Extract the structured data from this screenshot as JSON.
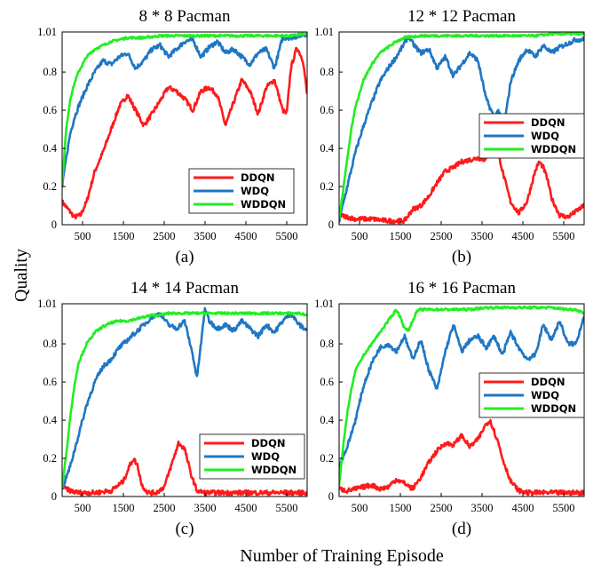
{
  "figure": {
    "ylabel": "Quality",
    "xlabel": "Number of Training Episode"
  },
  "chart_data": [
    {
      "type": "line",
      "title": "8 * 8 Pacman",
      "caption": "(a)",
      "xlim": [
        0,
        6000
      ],
      "ylim": [
        0,
        1.01
      ],
      "xticks": [
        500,
        1500,
        2500,
        3500,
        4500,
        5500
      ],
      "yticks": [
        0,
        0.2,
        0.4,
        0.6,
        0.8,
        1.01
      ],
      "ytick_labels": [
        "0",
        "0.2",
        "0.4",
        "0.6",
        "0.8",
        "1.01"
      ],
      "legend_position": "bottom-right",
      "series": [
        {
          "name": "DDQN",
          "color": "#ff1a1a",
          "x": [
            0,
            150,
            300,
            450,
            600,
            800,
            1000,
            1200,
            1400,
            1600,
            1800,
            2000,
            2200,
            2400,
            2600,
            2800,
            3000,
            3200,
            3400,
            3600,
            3800,
            4000,
            4200,
            4400,
            4600,
            4800,
            5000,
            5200,
            5400,
            5500,
            5600,
            5750,
            5900,
            6000
          ],
          "y": [
            0.12,
            0.08,
            0.04,
            0.05,
            0.12,
            0.28,
            0.38,
            0.5,
            0.62,
            0.68,
            0.6,
            0.52,
            0.58,
            0.65,
            0.72,
            0.7,
            0.66,
            0.6,
            0.7,
            0.72,
            0.68,
            0.52,
            0.64,
            0.76,
            0.7,
            0.58,
            0.72,
            0.76,
            0.6,
            0.58,
            0.82,
            0.93,
            0.86,
            0.68
          ]
        },
        {
          "name": "WDQ",
          "color": "#1f77c4",
          "x": [
            0,
            100,
            200,
            300,
            400,
            600,
            800,
            1000,
            1200,
            1400,
            1600,
            1800,
            2000,
            2200,
            2400,
            2600,
            2800,
            3000,
            3200,
            3400,
            3600,
            3800,
            4000,
            4200,
            4400,
            4600,
            4800,
            5000,
            5200,
            5400,
            5600,
            5800,
            6000
          ],
          "y": [
            0.2,
            0.35,
            0.48,
            0.56,
            0.62,
            0.72,
            0.8,
            0.86,
            0.84,
            0.88,
            0.9,
            0.82,
            0.86,
            0.92,
            0.94,
            0.88,
            0.92,
            0.96,
            0.97,
            0.88,
            0.93,
            0.96,
            0.9,
            0.92,
            0.88,
            0.84,
            0.9,
            0.92,
            0.82,
            0.98,
            0.98,
            0.99,
            1.0
          ]
        },
        {
          "name": "WDDQN",
          "color": "#22ee22",
          "x": [
            0,
            100,
            200,
            300,
            400,
            600,
            800,
            1000,
            1200,
            1400,
            1600,
            1800,
            2000,
            2400,
            2800,
            3200,
            3600,
            4000,
            4400,
            4800,
            5200,
            5600,
            6000
          ],
          "y": [
            0.22,
            0.5,
            0.66,
            0.74,
            0.8,
            0.88,
            0.92,
            0.94,
            0.96,
            0.97,
            0.98,
            0.98,
            0.98,
            0.99,
            0.99,
            0.99,
            0.99,
            0.99,
            0.99,
            0.99,
            0.99,
            0.99,
            1.0
          ]
        }
      ]
    },
    {
      "type": "line",
      "title": "12 * 12 Pacman",
      "caption": "(b)",
      "xlim": [
        0,
        6000
      ],
      "ylim": [
        0,
        1.01
      ],
      "xticks": [
        500,
        1500,
        2500,
        3500,
        4500,
        5500
      ],
      "yticks": [
        0,
        0.2,
        0.4,
        0.6,
        0.8,
        1.01
      ],
      "ytick_labels": [
        "0",
        "0.2",
        "0.4",
        "0.6",
        "0.8",
        "1.01"
      ],
      "legend_position": "center-right",
      "series": [
        {
          "name": "DDQN",
          "color": "#ff1a1a",
          "x": [
            0,
            200,
            400,
            800,
            1200,
            1600,
            1700,
            1800,
            2000,
            2200,
            2400,
            2600,
            2800,
            3000,
            3200,
            3400,
            3600,
            3700,
            3800,
            3900,
            4000,
            4200,
            4400,
            4600,
            4800,
            4900,
            5000,
            5100,
            5200,
            5400,
            5600,
            6000
          ],
          "y": [
            0.05,
            0.04,
            0.03,
            0.03,
            0.02,
            0.02,
            0.05,
            0.08,
            0.1,
            0.15,
            0.22,
            0.28,
            0.3,
            0.33,
            0.34,
            0.35,
            0.34,
            0.42,
            0.47,
            0.38,
            0.28,
            0.12,
            0.06,
            0.12,
            0.28,
            0.33,
            0.3,
            0.24,
            0.14,
            0.05,
            0.04,
            0.1
          ]
        },
        {
          "name": "WDQ",
          "color": "#1f77c4",
          "x": [
            0,
            200,
            400,
            600,
            800,
            1000,
            1200,
            1400,
            1600,
            1700,
            1800,
            2000,
            2200,
            2400,
            2600,
            2800,
            3000,
            3200,
            3400,
            3600,
            3800,
            3900,
            4000,
            4100,
            4200,
            4400,
            4600,
            4800,
            5000,
            5200,
            5400,
            5600,
            5800,
            6000
          ],
          "y": [
            0.02,
            0.2,
            0.38,
            0.52,
            0.64,
            0.75,
            0.82,
            0.88,
            0.95,
            0.99,
            0.95,
            0.9,
            0.92,
            0.82,
            0.88,
            0.78,
            0.84,
            0.9,
            0.86,
            0.66,
            0.56,
            0.6,
            0.52,
            0.6,
            0.75,
            0.86,
            0.92,
            0.88,
            0.94,
            0.9,
            0.93,
            0.95,
            0.97,
            0.97
          ]
        },
        {
          "name": "WDDQN",
          "color": "#22ee22",
          "x": [
            0,
            100,
            200,
            300,
            400,
            600,
            800,
            1000,
            1200,
            1400,
            1600,
            2000,
            2400,
            2800,
            3200,
            3600,
            4000,
            4400,
            4800,
            5200,
            5600,
            6000
          ],
          "y": [
            0.03,
            0.18,
            0.35,
            0.5,
            0.62,
            0.76,
            0.84,
            0.9,
            0.93,
            0.96,
            0.98,
            0.99,
            0.99,
            0.99,
            0.99,
            0.99,
            0.99,
            0.99,
            0.99,
            1.0,
            1.0,
            1.0
          ]
        }
      ]
    },
    {
      "type": "line",
      "title": "14 * 14 Pacman",
      "caption": "(c)",
      "xlim": [
        0,
        6000
      ],
      "ylim": [
        0,
        1.01
      ],
      "xticks": [
        500,
        1500,
        2500,
        3500,
        4500,
        5500
      ],
      "yticks": [
        0,
        0.2,
        0.4,
        0.6,
        0.8,
        1.01
      ],
      "ytick_labels": [
        "0",
        "0.2",
        "0.4",
        "0.6",
        "0.8",
        "1.01"
      ],
      "legend_position": "bottom-center",
      "series": [
        {
          "name": "DDQN",
          "color": "#ff1a1a",
          "x": [
            0,
            200,
            400,
            800,
            1200,
            1500,
            1650,
            1750,
            1850,
            1950,
            2100,
            2300,
            2500,
            2700,
            2850,
            3000,
            3150,
            3300,
            3500,
            4000,
            5000,
            6000
          ],
          "y": [
            0.05,
            0.03,
            0.02,
            0.02,
            0.03,
            0.08,
            0.16,
            0.2,
            0.16,
            0.06,
            0.02,
            0.02,
            0.05,
            0.18,
            0.28,
            0.25,
            0.12,
            0.03,
            0.02,
            0.02,
            0.02,
            0.02
          ]
        },
        {
          "name": "WDQ",
          "color": "#1f77c4",
          "x": [
            0,
            200,
            400,
            600,
            800,
            1000,
            1200,
            1400,
            1600,
            1800,
            2000,
            2200,
            2400,
            2600,
            2800,
            3000,
            3200,
            3300,
            3400,
            3500,
            3600,
            3800,
            4000,
            4200,
            4400,
            4600,
            4800,
            5000,
            5200,
            5400,
            5600,
            5800,
            6000
          ],
          "y": [
            0.04,
            0.16,
            0.32,
            0.48,
            0.6,
            0.68,
            0.72,
            0.78,
            0.82,
            0.86,
            0.9,
            0.94,
            0.96,
            0.9,
            0.88,
            0.92,
            0.74,
            0.62,
            0.8,
            0.99,
            0.92,
            0.88,
            0.9,
            0.87,
            0.92,
            0.88,
            0.84,
            0.9,
            0.86,
            0.92,
            0.96,
            0.9,
            0.87
          ]
        },
        {
          "name": "WDDQN",
          "color": "#22ee22",
          "x": [
            0,
            100,
            200,
            300,
            400,
            600,
            800,
            1000,
            1200,
            1400,
            1600,
            1800,
            2000,
            2200,
            2400,
            2600,
            2800,
            3000,
            3400,
            3800,
            4200,
            4600,
            5000,
            5400,
            5800,
            6000
          ],
          "y": [
            0.05,
            0.22,
            0.42,
            0.58,
            0.7,
            0.8,
            0.86,
            0.89,
            0.91,
            0.92,
            0.92,
            0.93,
            0.94,
            0.95,
            0.95,
            0.96,
            0.96,
            0.96,
            0.96,
            0.96,
            0.96,
            0.96,
            0.96,
            0.96,
            0.96,
            0.95
          ]
        }
      ]
    },
    {
      "type": "line",
      "title": "16 * 16 Pacman",
      "caption": "(d)",
      "xlim": [
        0,
        6000
      ],
      "ylim": [
        0,
        1.01
      ],
      "xticks": [
        500,
        1500,
        2500,
        3500,
        4500,
        5500
      ],
      "yticks": [
        0,
        0.2,
        0.4,
        0.6,
        0.8,
        1.01
      ],
      "ytick_labels": [
        "0",
        "0.2",
        "0.4",
        "0.6",
        "0.8",
        "1.01"
      ],
      "legend_position": "center-right",
      "series": [
        {
          "name": "DDQN",
          "color": "#ff1a1a",
          "x": [
            0,
            200,
            400,
            600,
            800,
            1000,
            1200,
            1400,
            1600,
            1800,
            2000,
            2200,
            2400,
            2600,
            2800,
            3000,
            3200,
            3400,
            3600,
            3700,
            3800,
            3900,
            4000,
            4200,
            4400,
            4600,
            5000,
            5600,
            6000
          ],
          "y": [
            0.04,
            0.03,
            0.04,
            0.05,
            0.06,
            0.04,
            0.05,
            0.09,
            0.07,
            0.04,
            0.1,
            0.18,
            0.24,
            0.28,
            0.27,
            0.32,
            0.26,
            0.3,
            0.38,
            0.4,
            0.34,
            0.28,
            0.2,
            0.08,
            0.03,
            0.02,
            0.02,
            0.02,
            0.02
          ]
        },
        {
          "name": "WDQ",
          "color": "#1f77c4",
          "x": [
            0,
            200,
            400,
            600,
            800,
            1000,
            1200,
            1400,
            1600,
            1800,
            2000,
            2200,
            2400,
            2600,
            2800,
            3000,
            3200,
            3400,
            3600,
            3800,
            4000,
            4200,
            4400,
            4600,
            4800,
            5000,
            5200,
            5400,
            5600,
            5800,
            6000
          ],
          "y": [
            0.16,
            0.26,
            0.4,
            0.58,
            0.7,
            0.78,
            0.8,
            0.76,
            0.84,
            0.72,
            0.82,
            0.66,
            0.56,
            0.76,
            0.9,
            0.76,
            0.82,
            0.84,
            0.78,
            0.84,
            0.74,
            0.86,
            0.78,
            0.72,
            0.74,
            0.9,
            0.82,
            0.92,
            0.8,
            0.8,
            0.95
          ]
        },
        {
          "name": "WDDQN",
          "color": "#22ee22",
          "x": [
            0,
            100,
            200,
            300,
            400,
            600,
            800,
            1000,
            1200,
            1400,
            1500,
            1600,
            1700,
            1800,
            1900,
            2000,
            2200,
            2400,
            2800,
            3200,
            3600,
            4000,
            4400,
            4800,
            5200,
            5600,
            5800,
            6000
          ],
          "y": [
            0.06,
            0.26,
            0.44,
            0.56,
            0.66,
            0.74,
            0.8,
            0.86,
            0.92,
            0.98,
            0.94,
            0.88,
            0.87,
            0.92,
            0.97,
            0.98,
            0.98,
            0.98,
            0.98,
            0.98,
            0.99,
            0.99,
            0.99,
            0.99,
            0.99,
            0.98,
            0.98,
            0.96
          ]
        }
      ]
    }
  ]
}
